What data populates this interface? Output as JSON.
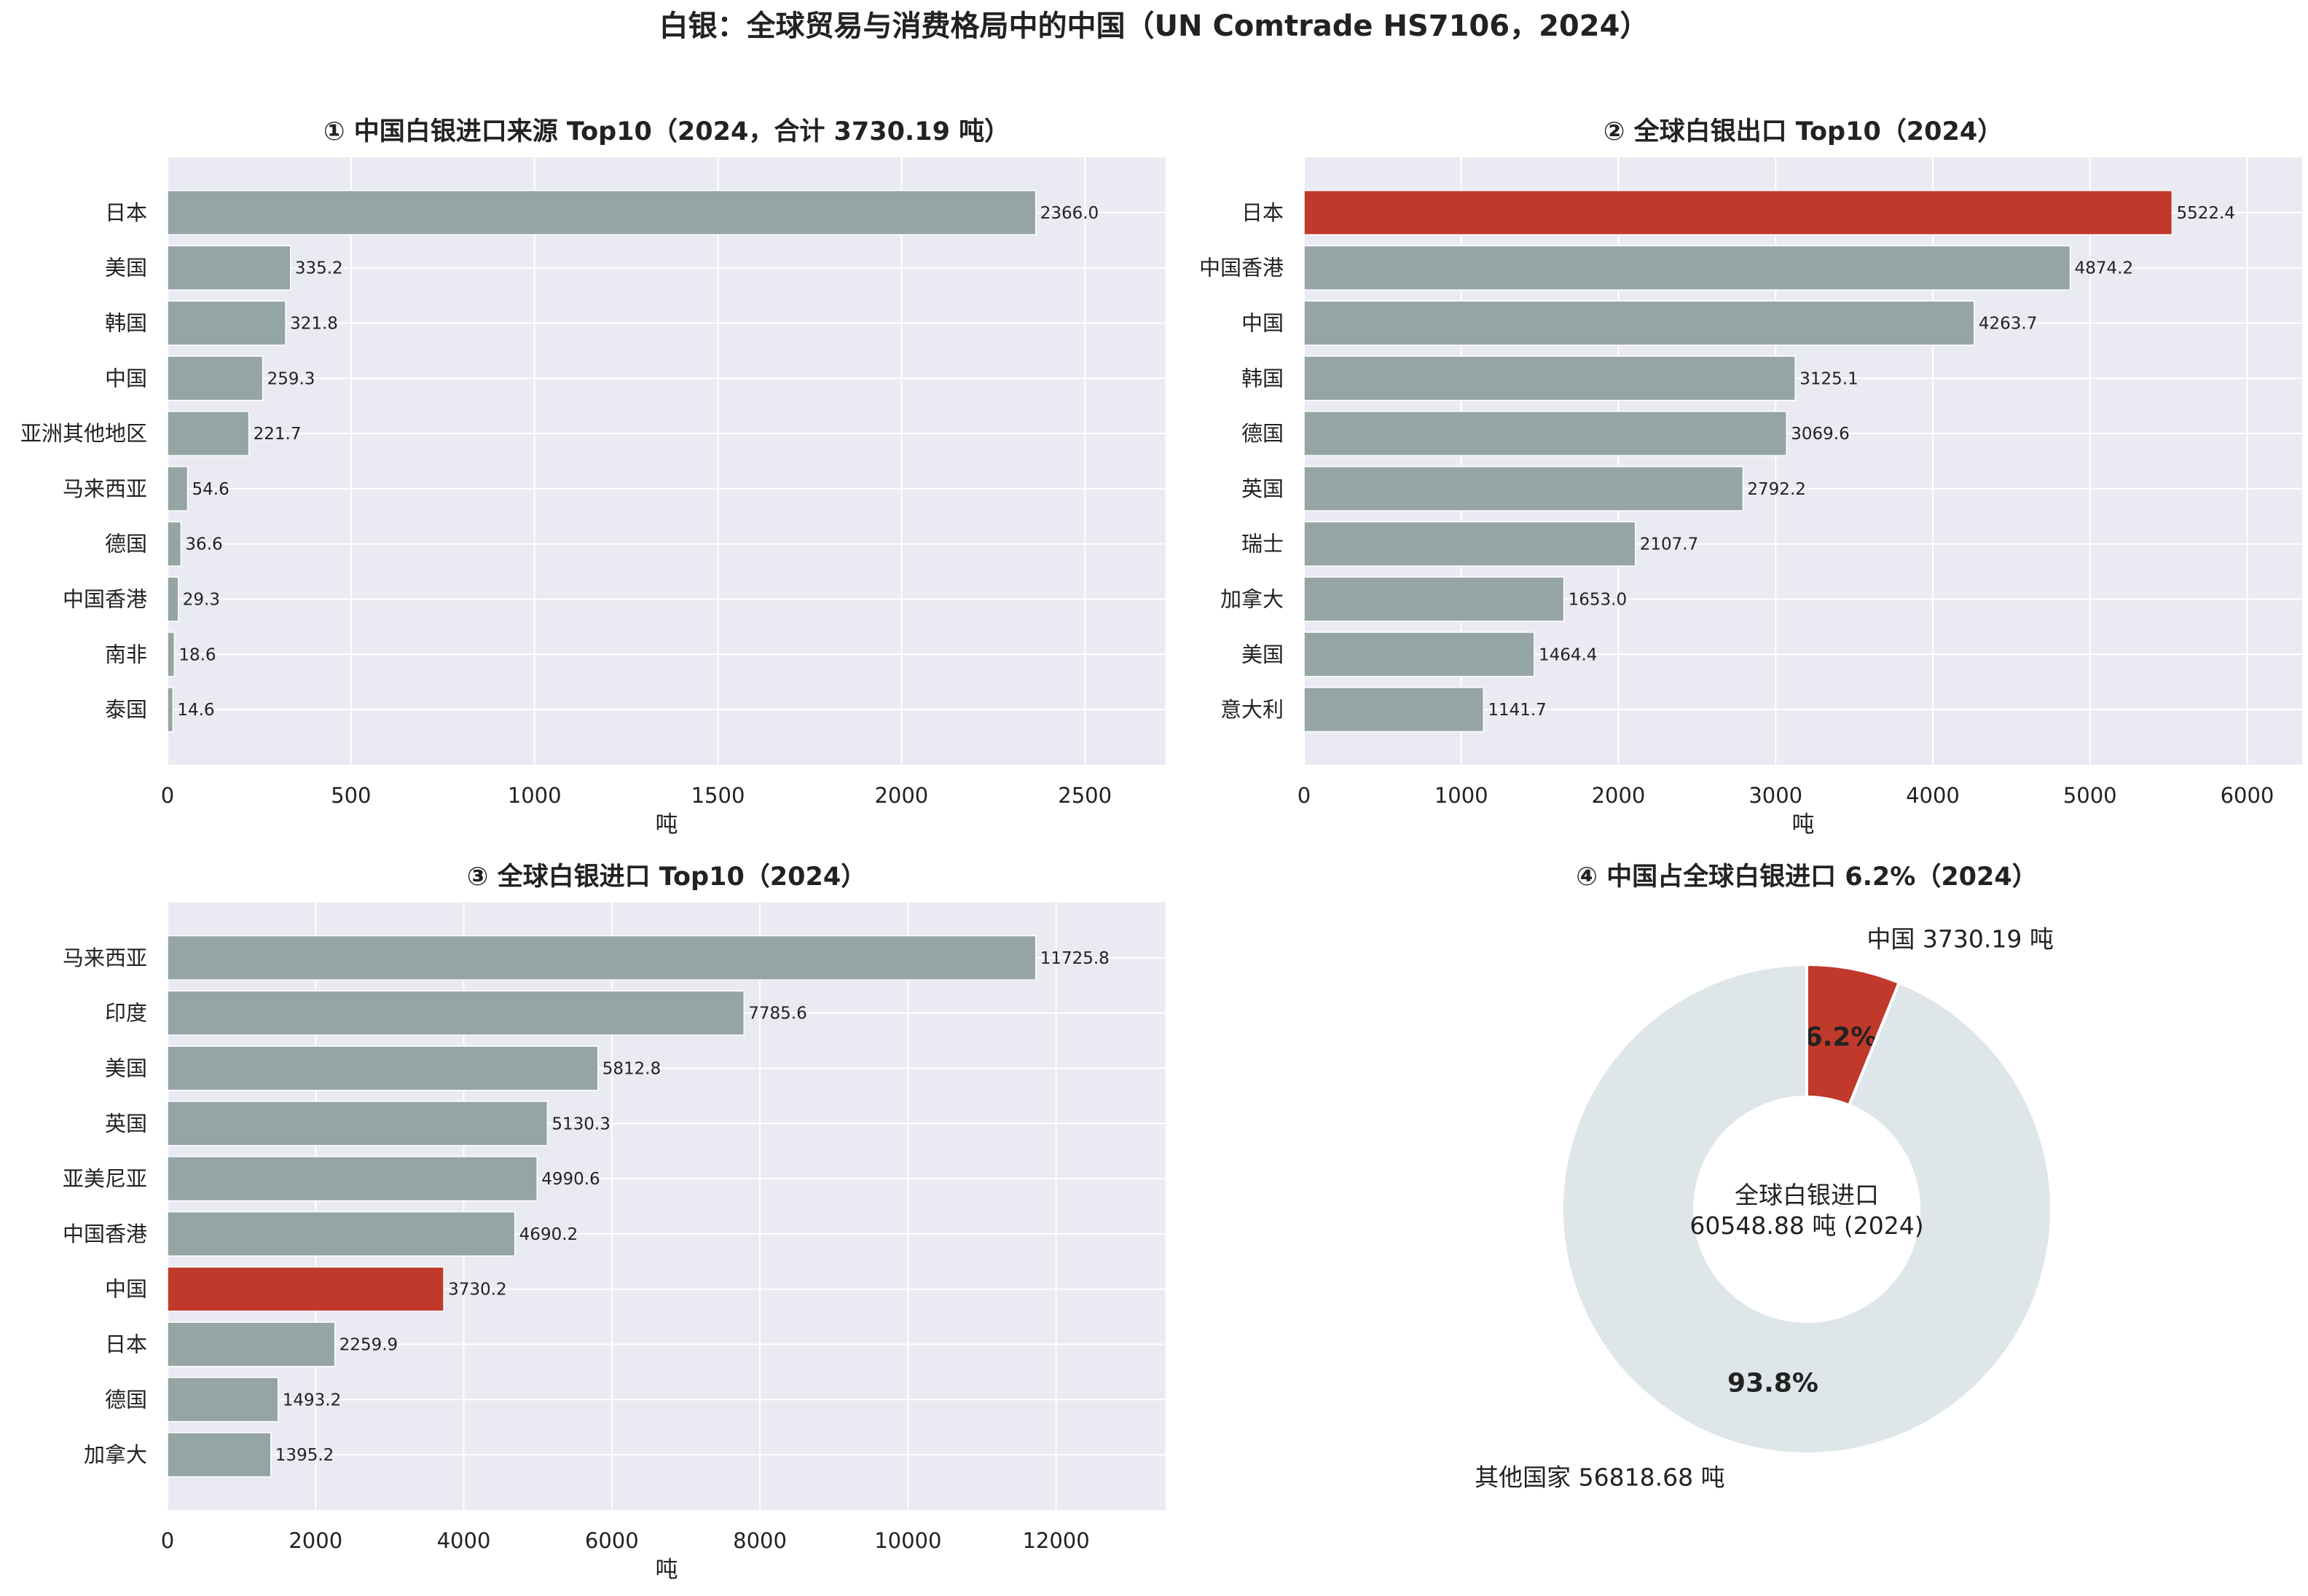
{
  "figure": {
    "title": "白银：全球贸易与消费格局中的中国（UN Comtrade HS7106，2024）"
  },
  "colors": {
    "bar": "#95a5a5",
    "highlight": "#c0392b",
    "axes_bg": "#eaeaf2",
    "grid": "#ffffff",
    "pie_other": "#dfe6e9"
  },
  "chart_data": [
    {
      "type": "bar",
      "orientation": "horizontal",
      "title": "① 中国白银进口来源 Top10（2024，合计 3730.19 吨）",
      "xlabel": "吨",
      "categories": [
        "日本",
        "美国",
        "韩国",
        "中国",
        "亚洲其他地区",
        "马来西亚",
        "德国",
        "中国香港",
        "南非",
        "泰国"
      ],
      "values": [
        2366.0,
        335.2,
        321.8,
        259.3,
        221.7,
        54.6,
        36.6,
        29.3,
        18.6,
        14.6
      ],
      "value_labels": [
        "2366.0",
        "335.2",
        "321.8",
        "259.3",
        "221.7",
        "54.6",
        "36.6",
        "29.3",
        "18.6",
        "14.6"
      ],
      "highlight": [],
      "xlim": [
        0,
        2720
      ],
      "xticks": [
        0,
        500,
        1000,
        1500,
        2000,
        2500
      ],
      "grid": true
    },
    {
      "type": "bar",
      "orientation": "horizontal",
      "title": "② 全球白银出口 Top10（2024）",
      "xlabel": "吨",
      "categories": [
        "日本",
        "中国香港",
        "中国",
        "韩国",
        "德国",
        "英国",
        "瑞士",
        "加拿大",
        "美国",
        "意大利"
      ],
      "values": [
        5522.4,
        4874.2,
        4263.7,
        3125.1,
        3069.6,
        2792.2,
        2107.7,
        1653.0,
        1464.4,
        1141.7
      ],
      "value_labels": [
        "5522.4",
        "4874.2",
        "4263.7",
        "3125.1",
        "3069.6",
        "2792.2",
        "2107.7",
        "1653.0",
        "1464.4",
        "1141.7"
      ],
      "highlight": [
        0
      ],
      "xlim": [
        0,
        6350
      ],
      "xticks": [
        0,
        1000,
        2000,
        3000,
        4000,
        5000,
        6000
      ],
      "grid": true
    },
    {
      "type": "bar",
      "orientation": "horizontal",
      "title": "③ 全球白银进口 Top10（2024）",
      "xlabel": "吨",
      "categories": [
        "马来西亚",
        "印度",
        "美国",
        "英国",
        "亚美尼亚",
        "中国香港",
        "中国",
        "日本",
        "德国",
        "加拿大"
      ],
      "values": [
        11725.8,
        7785.6,
        5812.8,
        5130.3,
        4990.6,
        4690.2,
        3730.2,
        2259.9,
        1493.2,
        1395.2
      ],
      "value_labels": [
        "11725.8",
        "7785.6",
        "5812.8",
        "5130.3",
        "4990.6",
        "4690.2",
        "3730.2",
        "2259.9",
        "1493.2",
        "1395.2"
      ],
      "highlight": [
        6
      ],
      "xlim": [
        0,
        13480
      ],
      "xticks": [
        0,
        2000,
        4000,
        6000,
        8000,
        10000,
        12000
      ],
      "grid": true
    },
    {
      "type": "pie",
      "donut": true,
      "title": "④ 中国占全球白银进口 6.2%（2024）",
      "slices": [
        {
          "label": "中国 3730.19 吨",
          "value": 3730.19,
          "pct_label": "6.2%",
          "color": "#c0392b"
        },
        {
          "label": "其他国家 56818.68 吨",
          "value": 56818.68,
          "pct_label": "93.8%",
          "color": "#dfe6e9"
        }
      ],
      "center_lines": [
        "全球白银进口",
        "60548.88 吨 (2024)"
      ]
    }
  ]
}
